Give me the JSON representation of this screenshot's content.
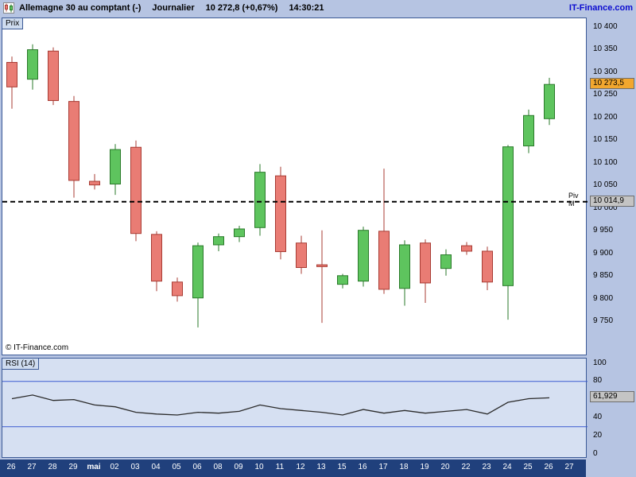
{
  "header": {
    "instrument": "Allemagne 30 au comptant (-)",
    "timeframe": "Journalier",
    "quote": "10 272,8 (+0,67%)",
    "time": "14:30:21",
    "brand": "IT-Finance.com"
  },
  "price_panel": {
    "label": "Prix",
    "copyright": "© IT-Finance.com",
    "pivot_label": "Piv M",
    "pivot_value_label": "10 014,9",
    "current_price_label": "10 273,5",
    "axis_ticks": [
      "10 400",
      "10 350",
      "10 300",
      "10 250",
      "10 200",
      "10 150",
      "10 100",
      "10 050",
      "10 000",
      "9 950",
      "9 900",
      "9 850",
      "9 800",
      "9 750"
    ]
  },
  "rsi_panel": {
    "label": "RSI (14)",
    "value_label": "61,929",
    "axis_ticks": [
      "100",
      "80",
      "60",
      "40",
      "20",
      "0"
    ]
  },
  "x_axis": {
    "dates": [
      "26",
      "27",
      "28",
      "29",
      "mai",
      "02",
      "03",
      "04",
      "05",
      "06",
      "08",
      "09",
      "10",
      "11",
      "12",
      "13",
      "15",
      "16",
      "17",
      "18",
      "19",
      "20",
      "22",
      "23",
      "24",
      "25",
      "26",
      "27"
    ]
  },
  "colors": {
    "background": "#b6c4e2",
    "panel_bg": "#ffffff",
    "rsi_bg": "#d6e0f2",
    "panel_border": "#3c5a96",
    "axis_bar_bg": "#20407c",
    "axis_bar_text": "#ffffff",
    "candle_up_fill": "#5ec45e",
    "candle_up_stroke": "#2a7a2a",
    "candle_down_fill": "#e97c74",
    "candle_down_stroke": "#a83c34",
    "last_price_box_bg": "#f2a72e",
    "value_box_bg": "#c4c4c4",
    "value_box_border": "#6e6e6e",
    "rsi_line": "#2a2a2a",
    "level_line": "#3b5bd0",
    "pivot_line": "#000000",
    "brand_color": "#0b0bd0"
  },
  "chart_data": [
    {
      "type": "candlestick",
      "title": "Allemagne 30 au comptant — Journalier",
      "x": [
        "26",
        "27",
        "28",
        "29",
        "mai",
        "02",
        "03",
        "04",
        "05",
        "06",
        "08",
        "09",
        "10",
        "11",
        "12",
        "13",
        "15",
        "16",
        "17",
        "18",
        "19",
        "20",
        "22",
        "23",
        "24",
        "25",
        "26",
        "27"
      ],
      "ohlc": [
        [
          10322,
          10335,
          10220,
          10268
        ],
        [
          10285,
          10362,
          10262,
          10350
        ],
        [
          10347,
          10355,
          10228,
          10238
        ],
        [
          10236,
          10248,
          10024,
          10062
        ],
        [
          10060,
          10076,
          10042,
          10052
        ],
        [
          10054,
          10142,
          10030,
          10130
        ],
        [
          10135,
          10150,
          9928,
          9945
        ],
        [
          9943,
          9950,
          9818,
          9840
        ],
        [
          9838,
          9848,
          9795,
          9808
        ],
        [
          9803,
          9925,
          9738,
          9918
        ],
        [
          9920,
          9945,
          9906,
          9938
        ],
        [
          9938,
          9962,
          9926,
          9955
        ],
        [
          9958,
          10098,
          9940,
          10080
        ],
        [
          10072,
          10092,
          9888,
          9905
        ],
        [
          9924,
          9940,
          9856,
          9870
        ],
        [
          9876,
          9952,
          9748,
          9872
        ],
        [
          9833,
          9856,
          9824,
          9852
        ],
        [
          9840,
          9960,
          9828,
          9952
        ],
        [
          9950,
          10088,
          9812,
          9822
        ],
        [
          9824,
          9930,
          9786,
          9920
        ],
        [
          9924,
          9932,
          9792,
          9836
        ],
        [
          9868,
          9910,
          9852,
          9898
        ],
        [
          9918,
          9926,
          9898,
          9906
        ],
        [
          9906,
          9916,
          9820,
          9838
        ],
        [
          9830,
          10140,
          9755,
          10136
        ],
        [
          10138,
          10218,
          10122,
          10205
        ],
        [
          10198,
          10288,
          10184,
          10273.5
        ],
        null
      ],
      "ylim": [
        9750,
        10400
      ],
      "ylabel": "Prix",
      "grid": false,
      "pivot_line": {
        "label": "Piv M",
        "value": 10014.9,
        "style": "dashed"
      },
      "last_price": 10273.5
    },
    {
      "type": "line",
      "title": "RSI (14)",
      "x": [
        "26",
        "27",
        "28",
        "29",
        "mai",
        "02",
        "03",
        "04",
        "05",
        "06",
        "08",
        "09",
        "10",
        "11",
        "12",
        "13",
        "15",
        "16",
        "17",
        "18",
        "19",
        "20",
        "22",
        "23",
        "24",
        "25",
        "26"
      ],
      "values": [
        61,
        65,
        59,
        60,
        54,
        52,
        46,
        44,
        43,
        46,
        45,
        47,
        54,
        50,
        48,
        46,
        43,
        49,
        45,
        48,
        45,
        47,
        49,
        44,
        57,
        61,
        61.929
      ],
      "ylim": [
        0,
        100
      ],
      "levels": [
        80,
        30
      ],
      "last_value": 61.929
    }
  ]
}
